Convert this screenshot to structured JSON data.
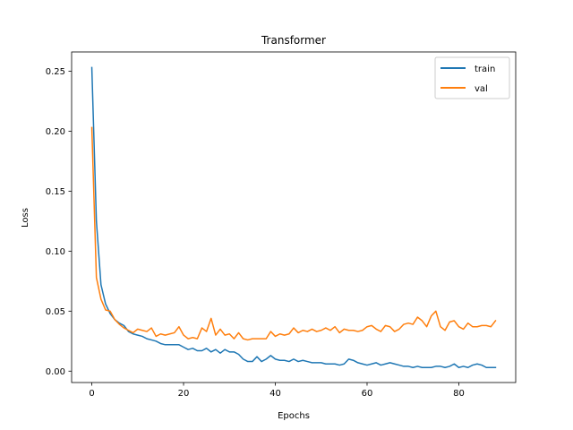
{
  "chart_data": {
    "type": "line",
    "title": "Transformer",
    "xlabel": "Epochs",
    "ylabel": "Loss",
    "xlim": [
      -4.4,
      92.4
    ],
    "ylim": [
      -0.0095,
      0.266
    ],
    "xticks": [
      0,
      20,
      40,
      60,
      80
    ],
    "xtick_labels": [
      "0",
      "20",
      "40",
      "60",
      "80"
    ],
    "yticks": [
      0.0,
      0.05,
      0.1,
      0.15,
      0.2,
      0.25
    ],
    "ytick_labels": [
      "0.00",
      "0.05",
      "0.10",
      "0.15",
      "0.20",
      "0.25"
    ],
    "grid": false,
    "legend_position": "top-right",
    "series": [
      {
        "name": "train",
        "color": "#1f77b4",
        "x": [
          0,
          1,
          2,
          3,
          4,
          5,
          6,
          7,
          8,
          9,
          10,
          11,
          12,
          13,
          14,
          15,
          16,
          17,
          18,
          19,
          20,
          21,
          22,
          23,
          24,
          25,
          26,
          27,
          28,
          29,
          30,
          31,
          32,
          33,
          34,
          35,
          36,
          37,
          38,
          39,
          40,
          41,
          42,
          43,
          44,
          45,
          46,
          47,
          48,
          49,
          50,
          51,
          52,
          53,
          54,
          55,
          56,
          57,
          58,
          59,
          60,
          61,
          62,
          63,
          64,
          65,
          66,
          67,
          68,
          69,
          70,
          71,
          72,
          73,
          74,
          75,
          76,
          77,
          78,
          79,
          80,
          81,
          82,
          83,
          84,
          85,
          86,
          87,
          88
        ],
        "values": [
          0.253,
          0.125,
          0.072,
          0.056,
          0.048,
          0.043,
          0.04,
          0.038,
          0.033,
          0.031,
          0.03,
          0.029,
          0.027,
          0.026,
          0.025,
          0.023,
          0.022,
          0.022,
          0.022,
          0.022,
          0.02,
          0.018,
          0.019,
          0.017,
          0.017,
          0.019,
          0.016,
          0.018,
          0.015,
          0.018,
          0.016,
          0.016,
          0.014,
          0.01,
          0.008,
          0.008,
          0.012,
          0.008,
          0.01,
          0.013,
          0.01,
          0.009,
          0.009,
          0.008,
          0.01,
          0.008,
          0.009,
          0.008,
          0.007,
          0.007,
          0.007,
          0.006,
          0.006,
          0.006,
          0.005,
          0.006,
          0.01,
          0.009,
          0.007,
          0.006,
          0.005,
          0.006,
          0.007,
          0.005,
          0.006,
          0.007,
          0.006,
          0.005,
          0.004,
          0.004,
          0.003,
          0.004,
          0.003,
          0.003,
          0.003,
          0.004,
          0.004,
          0.003,
          0.004,
          0.006,
          0.003,
          0.004,
          0.003,
          0.005,
          0.006,
          0.005,
          0.003,
          0.003,
          0.003
        ]
      },
      {
        "name": "val",
        "color": "#ff7f0e",
        "x": [
          0,
          1,
          2,
          3,
          4,
          5,
          6,
          7,
          8,
          9,
          10,
          11,
          12,
          13,
          14,
          15,
          16,
          17,
          18,
          19,
          20,
          21,
          22,
          23,
          24,
          25,
          26,
          27,
          28,
          29,
          30,
          31,
          32,
          33,
          34,
          35,
          36,
          37,
          38,
          39,
          40,
          41,
          42,
          43,
          44,
          45,
          46,
          47,
          48,
          49,
          50,
          51,
          52,
          53,
          54,
          55,
          56,
          57,
          58,
          59,
          60,
          61,
          62,
          63,
          64,
          65,
          66,
          67,
          68,
          69,
          70,
          71,
          72,
          73,
          74,
          75,
          76,
          77,
          78,
          79,
          80,
          81,
          82,
          83,
          84,
          85,
          86,
          87,
          88
        ],
        "values": [
          0.203,
          0.078,
          0.06,
          0.051,
          0.05,
          0.043,
          0.039,
          0.036,
          0.034,
          0.032,
          0.035,
          0.034,
          0.033,
          0.036,
          0.029,
          0.031,
          0.03,
          0.031,
          0.032,
          0.037,
          0.03,
          0.027,
          0.028,
          0.027,
          0.036,
          0.033,
          0.044,
          0.03,
          0.035,
          0.03,
          0.031,
          0.027,
          0.032,
          0.027,
          0.026,
          0.027,
          0.027,
          0.027,
          0.027,
          0.033,
          0.029,
          0.031,
          0.03,
          0.031,
          0.036,
          0.032,
          0.034,
          0.033,
          0.035,
          0.033,
          0.034,
          0.036,
          0.034,
          0.037,
          0.032,
          0.035,
          0.034,
          0.034,
          0.033,
          0.034,
          0.037,
          0.038,
          0.035,
          0.033,
          0.038,
          0.037,
          0.033,
          0.035,
          0.039,
          0.04,
          0.039,
          0.045,
          0.042,
          0.037,
          0.046,
          0.05,
          0.037,
          0.034,
          0.041,
          0.042,
          0.037,
          0.035,
          0.04,
          0.037,
          0.037,
          0.038,
          0.038,
          0.037,
          0.042
        ]
      }
    ]
  }
}
